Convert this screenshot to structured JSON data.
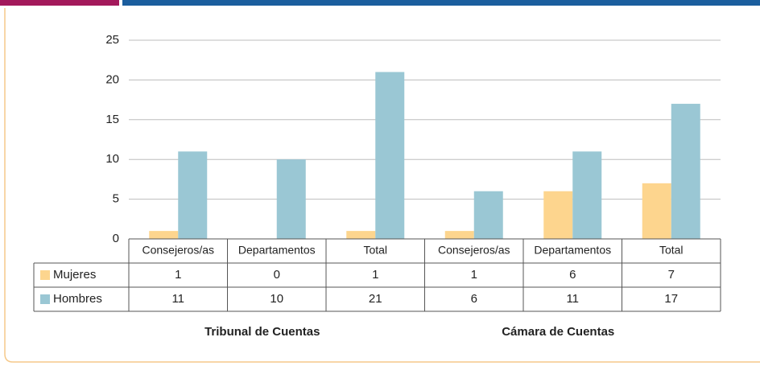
{
  "chart_data": {
    "type": "bar",
    "categories": [
      "Consejeros/as",
      "Departamentos",
      "Total",
      "Consejeros/as",
      "Departamentos",
      "Total"
    ],
    "groups": [
      "Tribunal de Cuentas",
      "Cámara de Cuentas"
    ],
    "series": [
      {
        "name": "Mujeres",
        "color": "#fdd58e",
        "values": [
          1,
          0,
          1,
          1,
          6,
          7
        ]
      },
      {
        "name": "Hombres",
        "color": "#9ac7d4",
        "values": [
          11,
          10,
          21,
          6,
          11,
          17
        ]
      }
    ],
    "ylim": [
      0,
      25
    ],
    "yticks": [
      0,
      5,
      10,
      15,
      20,
      25
    ],
    "grid": true
  }
}
